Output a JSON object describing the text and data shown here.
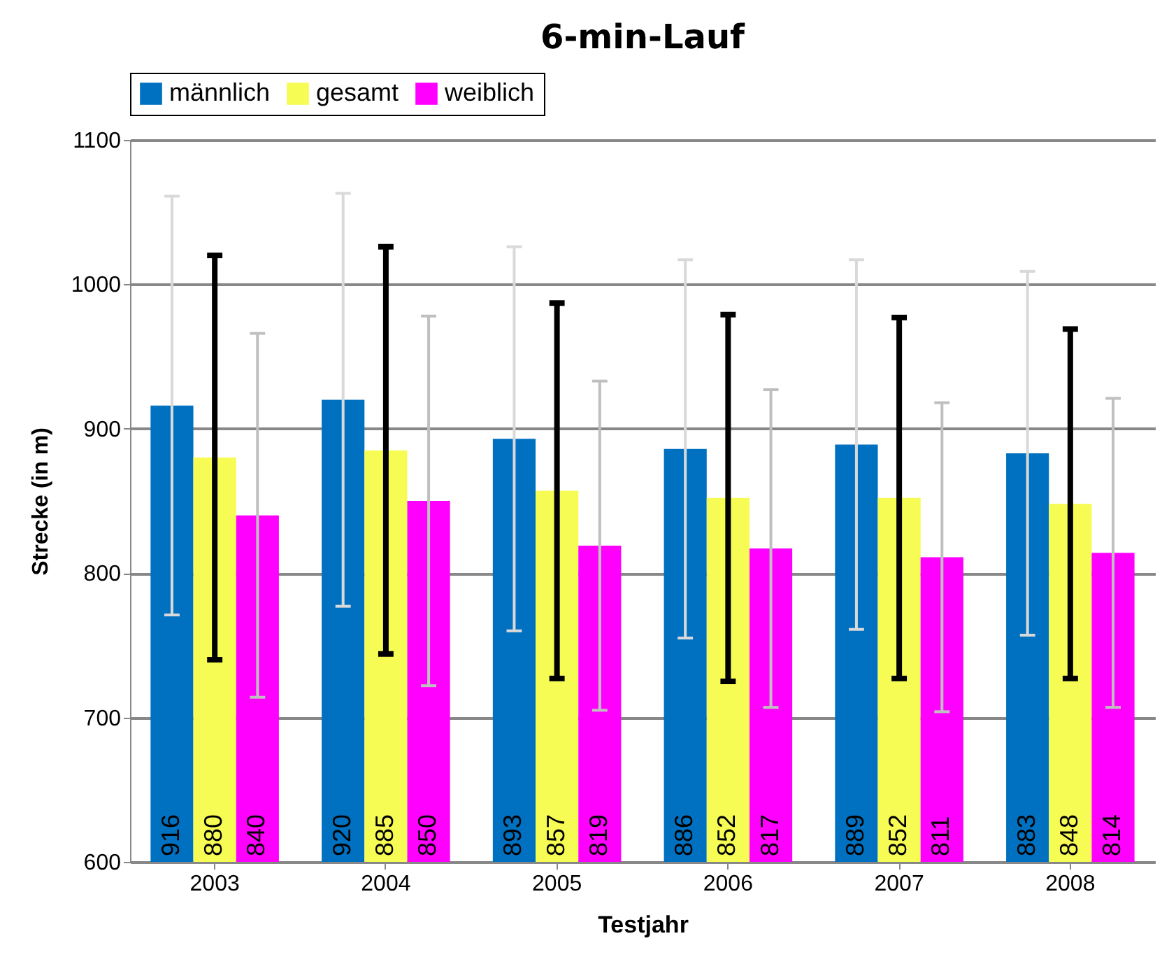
{
  "chart_data": {
    "type": "bar",
    "title": "6-min-Lauf",
    "xlabel": "Testjahr",
    "ylabel": "Strecke  (in m)",
    "categories": [
      "2003",
      "2004",
      "2005",
      "2006",
      "2007",
      "2008"
    ],
    "series": [
      {
        "name": "männlich",
        "color": "#0070c0",
        "values": [
          916,
          920,
          893,
          886,
          889,
          883
        ],
        "errors": [
          145,
          143,
          133,
          131,
          128,
          126
        ]
      },
      {
        "name": "gesamt",
        "color": "#f7fc55",
        "values": [
          880,
          885,
          857,
          852,
          852,
          848
        ],
        "errors": [
          140,
          141,
          130,
          127,
          125,
          121
        ]
      },
      {
        "name": "weiblich",
        "color": "#ff00ff",
        "values": [
          840,
          850,
          819,
          817,
          811,
          814
        ],
        "errors": [
          126,
          128,
          114,
          110,
          107,
          107
        ]
      }
    ],
    "ylim": [
      600,
      1100
    ],
    "yticks": [
      600,
      700,
      800,
      900,
      1000,
      1100
    ],
    "grid": "y",
    "legend": "top",
    "data_labels": true
  }
}
